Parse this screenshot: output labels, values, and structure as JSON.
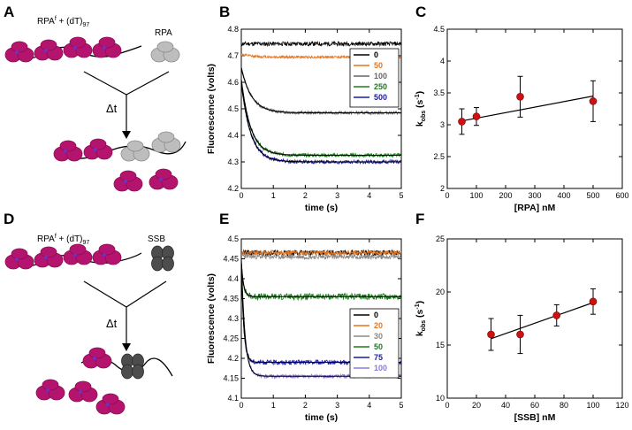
{
  "panels": {
    "A": {
      "letter": "A",
      "label_main": "RPA",
      "label_sup": "f",
      "label_rest": " + (dT)",
      "label_sub": "97",
      "protein_label": "RPA",
      "delta": "Δt",
      "colors": {
        "rpa_f": "#b5146e",
        "rpa_f_dark": "#8c0c55",
        "rpa": "#bdbdbd",
        "rpa_dark": "#8c8c8c",
        "dot": "#5a3ae0"
      }
    },
    "D": {
      "letter": "D",
      "label_main": "RPA",
      "label_sup": "f",
      "label_rest": " + (dT)",
      "label_sub": "97",
      "protein_label": "SSB",
      "delta": "Δt",
      "colors": {
        "ssb": "#4d4d4d",
        "ssb_dark": "#2a2a2a"
      }
    }
  },
  "chart_data": [
    {
      "id": "B",
      "letter": "B",
      "type": "line",
      "xlabel": "time (s)",
      "ylabel": "Fluorescence (volts)",
      "xlim": [
        0,
        5
      ],
      "ylim": [
        4.2,
        4.8
      ],
      "xticks": [
        0,
        1,
        2,
        3,
        4,
        5
      ],
      "yticks": [
        4.2,
        4.3,
        4.4,
        4.5,
        4.6,
        4.7,
        4.8
      ],
      "ytick_labels": [
        "4.2",
        "4.3",
        "4.4",
        "4.5",
        "4.6",
        "4.7",
        "4.8"
      ],
      "legend_position": "right",
      "series": [
        {
          "name": "0",
          "color": "#000000",
          "start": 4.745,
          "end": 4.745,
          "k": 3,
          "noise": 0.008,
          "seed": 11
        },
        {
          "name": "50",
          "color": "#e8741c",
          "start": 4.705,
          "end": 4.695,
          "k": 3,
          "noise": 0.005,
          "seed": 12
        },
        {
          "name": "100",
          "color": "#666666",
          "start": 4.655,
          "end": 4.485,
          "k": 3.1,
          "noise": 0.006,
          "seed": 13
        },
        {
          "name": "250",
          "color": "#1e7a1e",
          "start": 4.61,
          "end": 4.325,
          "k": 3.4,
          "noise": 0.007,
          "seed": 14
        },
        {
          "name": "500",
          "color": "#1a1aa8",
          "start": 4.6,
          "end": 4.3,
          "k": 3.4,
          "noise": 0.007,
          "seed": 15
        }
      ]
    },
    {
      "id": "E",
      "letter": "E",
      "type": "line",
      "xlabel": "time (s)",
      "ylabel": "Fluorescence (volts)",
      "xlim": [
        0,
        5
      ],
      "ylim": [
        4.1,
        4.5
      ],
      "xticks": [
        0,
        1,
        2,
        3,
        4,
        5
      ],
      "yticks": [
        4.1,
        4.15,
        4.2,
        4.25,
        4.3,
        4.35,
        4.4,
        4.45,
        4.5
      ],
      "ytick_labels": [
        "4.1",
        "4.15",
        "4.2",
        "4.25",
        "4.3",
        "4.35",
        "4.4",
        "4.45",
        "4.5"
      ],
      "legend_position": "right",
      "series": [
        {
          "name": "0",
          "color": "#000000",
          "start": 4.465,
          "end": 4.465,
          "k": 10,
          "noise": 0.007,
          "seed": 21
        },
        {
          "name": "20",
          "color": "#e8741c",
          "start": 4.465,
          "end": 4.465,
          "k": 10,
          "noise": 0.006,
          "seed": 22
        },
        {
          "name": "30",
          "color": "#888888",
          "start": 4.46,
          "end": 4.455,
          "k": 10,
          "noise": 0.006,
          "seed": 23
        },
        {
          "name": "50",
          "color": "#1e7a1e",
          "start": 4.44,
          "end": 4.355,
          "k": 14,
          "noise": 0.008,
          "seed": 24
        },
        {
          "name": "75",
          "color": "#1a1aa8",
          "start": 4.44,
          "end": 4.19,
          "k": 13,
          "noise": 0.006,
          "seed": 25
        },
        {
          "name": "100",
          "color": "#8f78d8",
          "start": 4.45,
          "end": 4.155,
          "k": 9,
          "noise": 0.005,
          "seed": 26
        }
      ]
    },
    {
      "id": "C",
      "letter": "C",
      "type": "scatter",
      "xlabel": "[RPA] nM",
      "ylabel_main": "k",
      "ylabel_sub": "obs",
      "ylabel_unit": " (s",
      "ylabel_sup": "-1",
      "ylabel_close": ")",
      "xlim": [
        0,
        600
      ],
      "ylim": [
        2,
        4.5
      ],
      "xticks": [
        0,
        100,
        200,
        300,
        400,
        500,
        600
      ],
      "yticks": [
        2,
        2.5,
        3,
        3.5,
        4,
        4.5
      ],
      "ytick_labels": [
        "2",
        "2.5",
        "3",
        "3.5",
        "4",
        "4.5"
      ],
      "points": [
        {
          "x": 50,
          "y": 3.05,
          "err": 0.2
        },
        {
          "x": 100,
          "y": 3.13,
          "err": 0.14
        },
        {
          "x": 250,
          "y": 3.44,
          "err": 0.32
        },
        {
          "x": 500,
          "y": 3.37,
          "err": 0.32
        }
      ],
      "fit": {
        "x0": 50,
        "y0": 3.06,
        "x1": 500,
        "y1": 3.45
      },
      "marker_color": "#cc1111"
    },
    {
      "id": "F",
      "letter": "F",
      "type": "scatter",
      "xlabel": "[SSB] nM",
      "ylabel_main": "k",
      "ylabel_sub": "obs",
      "ylabel_unit": " (s",
      "ylabel_sup": "-1",
      "ylabel_close": ")",
      "xlim": [
        0,
        120
      ],
      "ylim": [
        10,
        25
      ],
      "xticks": [
        0,
        20,
        40,
        60,
        80,
        100,
        120
      ],
      "yticks": [
        10,
        15,
        20,
        25
      ],
      "ytick_labels": [
        "10",
        "15",
        "20",
        "25"
      ],
      "points": [
        {
          "x": 30,
          "y": 16.0,
          "err": 1.5
        },
        {
          "x": 50,
          "y": 16.0,
          "err": 1.8
        },
        {
          "x": 75,
          "y": 17.8,
          "err": 1.0
        },
        {
          "x": 100,
          "y": 19.1,
          "err": 1.2
        }
      ],
      "fit": {
        "x0": 30,
        "y0": 15.6,
        "x1": 100,
        "y1": 19.0
      },
      "marker_color": "#cc1111"
    }
  ]
}
